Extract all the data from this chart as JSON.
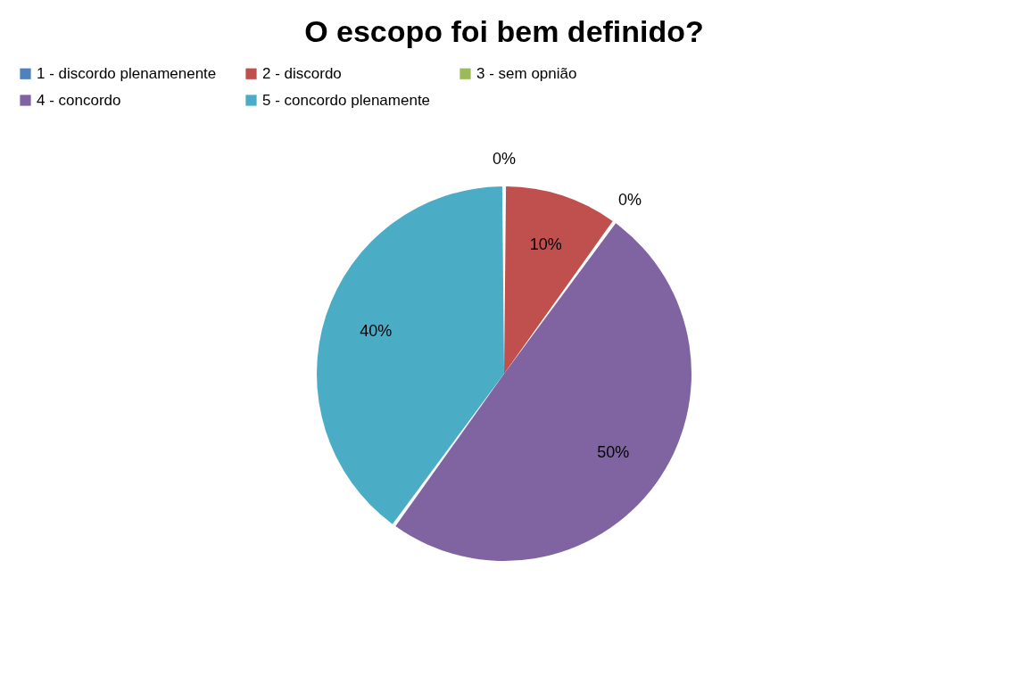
{
  "chart_data": {
    "type": "pie",
    "title": "O escopo foi bem definido?",
    "categories": [
      "1 - discordo plenamenente",
      "2 - discordo",
      "3 - sem opnião",
      "4 - concordo",
      "5 - concordo plenamente"
    ],
    "values": [
      0,
      10,
      0,
      50,
      40
    ],
    "colors": [
      "#4f81bd",
      "#c0504d",
      "#9bbb59",
      "#8064a2",
      "#4bacc6"
    ],
    "value_labels": [
      "0%",
      "10%",
      "0%",
      "50%",
      "40%"
    ],
    "legend": "top"
  }
}
